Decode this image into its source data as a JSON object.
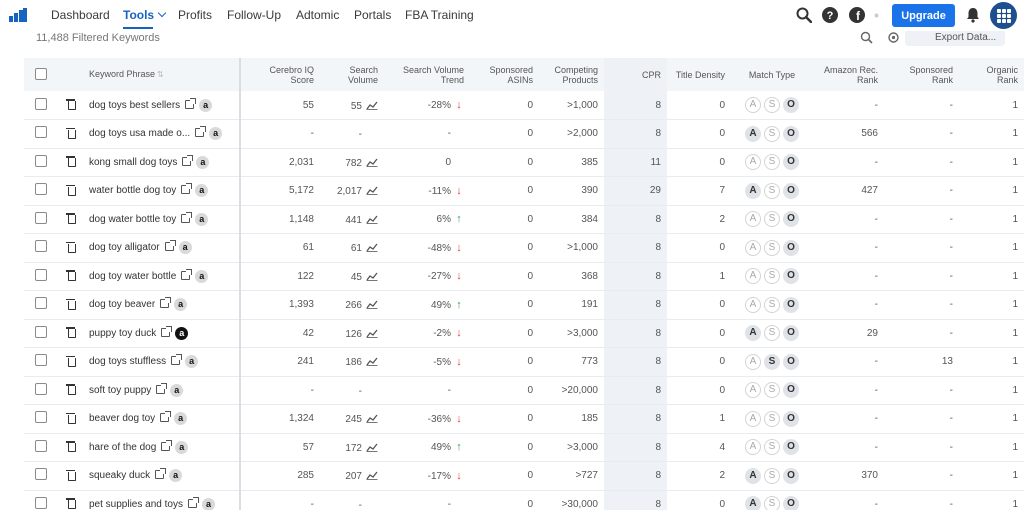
{
  "nav": {
    "items": [
      {
        "label": "Dashboard",
        "active": false
      },
      {
        "label": "Tools",
        "active": true,
        "dropdown": true
      },
      {
        "label": "Profits",
        "active": false
      },
      {
        "label": "Follow-Up",
        "active": false
      },
      {
        "label": "Adtomic",
        "active": false
      },
      {
        "label": "Portals",
        "active": false
      },
      {
        "label": "FBA Training",
        "active": false
      }
    ],
    "upgrade_label": "Upgrade",
    "accent_color": "#1a73e8"
  },
  "toolbar": {
    "filtered_count": "11,488 Filtered Keywords",
    "export_label": "Export Data..."
  },
  "table": {
    "headers": {
      "keyword": "Keyword Phrase",
      "iq_score": "Cerebro IQ Score",
      "search_volume": "Search Volume",
      "volume_trend": "Search Volume Trend",
      "sponsored_asins": "Sponsored ASINs",
      "competing": "Competing Products",
      "cpr": "CPR",
      "title_density": "Title Density",
      "match_type": "Match Type",
      "amazon_rank": "Amazon Rec. Rank",
      "sponsored_rank": "Sponsored Rank",
      "organic_rank": "Organic Rank"
    },
    "rows": [
      {
        "keyword": "dog toys best sellers",
        "amz_dark": false,
        "iq": "55",
        "volume": "55",
        "trend": "-28%",
        "trend_dir": "down",
        "sponsored": "0",
        "competing": ">1,000",
        "cpr": "8",
        "title_density": "0",
        "match": [
          "",
          "",
          "O"
        ],
        "amazon_rank": "-",
        "sponsored_rank": "-",
        "organic_rank": "1"
      },
      {
        "keyword": "dog toys usa made o...",
        "amz_dark": false,
        "iq": "-",
        "volume": "-",
        "trend": "-",
        "trend_dir": "",
        "sponsored": "0",
        "competing": ">2,000",
        "cpr": "8",
        "title_density": "0",
        "match": [
          "A",
          "",
          "O"
        ],
        "amazon_rank": "566",
        "sponsored_rank": "-",
        "organic_rank": "1"
      },
      {
        "keyword": "kong small dog toys",
        "amz_dark": false,
        "iq": "2,031",
        "volume": "782",
        "trend": "0",
        "trend_dir": "",
        "sponsored": "0",
        "competing": "385",
        "cpr": "11",
        "title_density": "0",
        "match": [
          "",
          "",
          "O"
        ],
        "amazon_rank": "-",
        "sponsored_rank": "-",
        "organic_rank": "1"
      },
      {
        "keyword": "water bottle dog toy",
        "amz_dark": false,
        "iq": "5,172",
        "volume": "2,017",
        "trend": "-11%",
        "trend_dir": "down",
        "sponsored": "0",
        "competing": "390",
        "cpr": "29",
        "title_density": "7",
        "match": [
          "A",
          "",
          "O"
        ],
        "amazon_rank": "427",
        "sponsored_rank": "-",
        "organic_rank": "1"
      },
      {
        "keyword": "dog water bottle toy",
        "amz_dark": false,
        "iq": "1,148",
        "volume": "441",
        "trend": "6%",
        "trend_dir": "up",
        "sponsored": "0",
        "competing": "384",
        "cpr": "8",
        "title_density": "2",
        "match": [
          "",
          "",
          "O"
        ],
        "amazon_rank": "-",
        "sponsored_rank": "-",
        "organic_rank": "1"
      },
      {
        "keyword": "dog toy alligator",
        "amz_dark": false,
        "iq": "61",
        "volume": "61",
        "trend": "-48%",
        "trend_dir": "down",
        "sponsored": "0",
        "competing": ">1,000",
        "cpr": "8",
        "title_density": "0",
        "match": [
          "",
          "",
          "O"
        ],
        "amazon_rank": "-",
        "sponsored_rank": "-",
        "organic_rank": "1"
      },
      {
        "keyword": "dog toy water bottle",
        "amz_dark": false,
        "iq": "122",
        "volume": "45",
        "trend": "-27%",
        "trend_dir": "down",
        "sponsored": "0",
        "competing": "368",
        "cpr": "8",
        "title_density": "1",
        "match": [
          "",
          "",
          "O"
        ],
        "amazon_rank": "-",
        "sponsored_rank": "-",
        "organic_rank": "1"
      },
      {
        "keyword": "dog toy beaver",
        "amz_dark": false,
        "iq": "1,393",
        "volume": "266",
        "trend": "49%",
        "trend_dir": "up",
        "sponsored": "0",
        "competing": "191",
        "cpr": "8",
        "title_density": "0",
        "match": [
          "",
          "",
          "O"
        ],
        "amazon_rank": "-",
        "sponsored_rank": "-",
        "organic_rank": "1"
      },
      {
        "keyword": "puppy toy duck",
        "amz_dark": true,
        "iq": "42",
        "volume": "126",
        "trend": "-2%",
        "trend_dir": "down",
        "sponsored": "0",
        "competing": ">3,000",
        "cpr": "8",
        "title_density": "0",
        "match": [
          "A",
          "",
          "O"
        ],
        "amazon_rank": "29",
        "sponsored_rank": "-",
        "organic_rank": "1"
      },
      {
        "keyword": "dog toys stuffless",
        "amz_dark": false,
        "iq": "241",
        "volume": "186",
        "trend": "-5%",
        "trend_dir": "down",
        "sponsored": "0",
        "competing": "773",
        "cpr": "8",
        "title_density": "0",
        "match": [
          "",
          "S",
          "O"
        ],
        "amazon_rank": "-",
        "sponsored_rank": "13",
        "organic_rank": "1"
      },
      {
        "keyword": "soft toy puppy",
        "amz_dark": false,
        "iq": "-",
        "volume": "-",
        "trend": "-",
        "trend_dir": "",
        "sponsored": "0",
        "competing": ">20,000",
        "cpr": "8",
        "title_density": "0",
        "match": [
          "",
          "",
          "O"
        ],
        "amazon_rank": "-",
        "sponsored_rank": "-",
        "organic_rank": "1"
      },
      {
        "keyword": "beaver dog toy",
        "amz_dark": false,
        "iq": "1,324",
        "volume": "245",
        "trend": "-36%",
        "trend_dir": "down",
        "sponsored": "0",
        "competing": "185",
        "cpr": "8",
        "title_density": "1",
        "match": [
          "",
          "",
          "O"
        ],
        "amazon_rank": "-",
        "sponsored_rank": "-",
        "organic_rank": "1"
      },
      {
        "keyword": "hare of the dog",
        "amz_dark": false,
        "iq": "57",
        "volume": "172",
        "trend": "49%",
        "trend_dir": "up",
        "sponsored": "0",
        "competing": ">3,000",
        "cpr": "8",
        "title_density": "4",
        "match": [
          "",
          "",
          "O"
        ],
        "amazon_rank": "-",
        "sponsored_rank": "-",
        "organic_rank": "1"
      },
      {
        "keyword": "squeaky duck",
        "amz_dark": false,
        "iq": "285",
        "volume": "207",
        "trend": "-17%",
        "trend_dir": "down",
        "sponsored": "0",
        "competing": ">727",
        "cpr": "8",
        "title_density": "2",
        "match": [
          "A",
          "",
          "O"
        ],
        "amazon_rank": "370",
        "sponsored_rank": "-",
        "organic_rank": "1"
      },
      {
        "keyword": "pet supplies and toys",
        "amz_dark": false,
        "iq": "-",
        "volume": "-",
        "trend": "-",
        "trend_dir": "",
        "sponsored": "0",
        "competing": ">30,000",
        "cpr": "8",
        "title_density": "0",
        "match": [
          "A",
          "",
          "O"
        ],
        "amazon_rank": "-",
        "sponsored_rank": "-",
        "organic_rank": "1"
      }
    ]
  }
}
